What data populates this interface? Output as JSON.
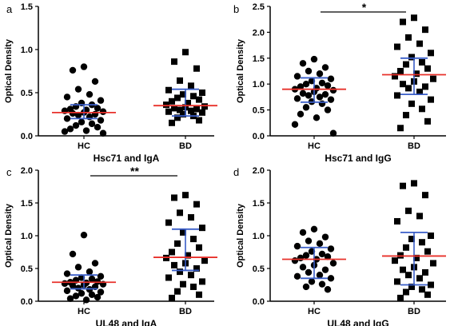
{
  "colors": {
    "mean_line": "#e8302a",
    "sd_line": "#3a5ec8",
    "points": "#000000"
  },
  "chart_data": [
    {
      "type": "scatter",
      "panel": "a",
      "xlabel": "Hsc71 and IgA",
      "ylabel": "Optical Density",
      "categories": [
        "HC",
        "BD"
      ],
      "ylim": [
        0,
        1.5
      ],
      "yticks": [
        "0.0",
        "0.5",
        "1.0",
        "1.5"
      ],
      "significance": "",
      "series": [
        {
          "marker": "circle",
          "mean": 0.27,
          "sd_low": 0.2,
          "sd_high": 0.36,
          "values": [
            0.8,
            0.76,
            0.63,
            0.54,
            0.48,
            0.45,
            0.41,
            0.38,
            0.36,
            0.34,
            0.32,
            0.31,
            0.3,
            0.29,
            0.28,
            0.27,
            0.26,
            0.25,
            0.24,
            0.22,
            0.2,
            0.18,
            0.16,
            0.14,
            0.12,
            0.1,
            0.08,
            0.06,
            0.05,
            0.03
          ]
        },
        {
          "marker": "square",
          "mean": 0.35,
          "sd_low": 0.23,
          "sd_high": 0.54,
          "values": [
            0.97,
            0.86,
            0.78,
            0.64,
            0.58,
            0.53,
            0.5,
            0.48,
            0.46,
            0.44,
            0.42,
            0.4,
            0.38,
            0.36,
            0.34,
            0.33,
            0.32,
            0.31,
            0.3,
            0.29,
            0.28,
            0.27,
            0.25,
            0.23,
            0.21,
            0.18,
            0.15
          ]
        }
      ]
    },
    {
      "type": "scatter",
      "panel": "b",
      "xlabel": "Hsc71 and IgG",
      "ylabel": "Optical Density",
      "categories": [
        "HC",
        "BD"
      ],
      "ylim": [
        0,
        2.5
      ],
      "yticks": [
        "0.0",
        "0.5",
        "1.0",
        "1.5",
        "2.0",
        "2.5"
      ],
      "significance": "*",
      "series": [
        {
          "marker": "circle",
          "mean": 0.9,
          "sd_low": 0.65,
          "sd_high": 1.12,
          "values": [
            1.48,
            1.4,
            1.32,
            1.25,
            1.2,
            1.15,
            1.1,
            1.06,
            1.02,
            1.0,
            0.97,
            0.95,
            0.92,
            0.9,
            0.88,
            0.85,
            0.82,
            0.8,
            0.78,
            0.75,
            0.72,
            0.7,
            0.66,
            0.62,
            0.55,
            0.5,
            0.42,
            0.35,
            0.22,
            0.05
          ]
        },
        {
          "marker": "square",
          "mean": 1.18,
          "sd_low": 0.8,
          "sd_high": 1.5,
          "values": [
            2.28,
            2.2,
            2.05,
            1.9,
            1.78,
            1.72,
            1.6,
            1.52,
            1.42,
            1.38,
            1.3,
            1.25,
            1.2,
            1.15,
            1.1,
            1.05,
            1.0,
            0.95,
            0.92,
            0.85,
            0.78,
            0.7,
            0.62,
            0.52,
            0.4,
            0.28,
            0.15
          ]
        }
      ]
    },
    {
      "type": "scatter",
      "panel": "c",
      "xlabel": "UL48 and IgA",
      "ylabel": "Optical Density",
      "categories": [
        "HC",
        "BD"
      ],
      "ylim": [
        0,
        2.0
      ],
      "yticks": [
        "0.0",
        "0.5",
        "1.0",
        "1.5",
        "2.0"
      ],
      "significance": "**",
      "series": [
        {
          "marker": "circle",
          "mean": 0.29,
          "sd_low": 0.19,
          "sd_high": 0.4,
          "values": [
            1.01,
            0.72,
            0.58,
            0.52,
            0.45,
            0.42,
            0.38,
            0.36,
            0.34,
            0.32,
            0.3,
            0.29,
            0.28,
            0.27,
            0.26,
            0.25,
            0.24,
            0.22,
            0.2,
            0.18,
            0.16,
            0.14,
            0.12,
            0.1,
            0.08,
            0.06,
            0.04,
            0.02
          ]
        },
        {
          "marker": "square",
          "mean": 0.67,
          "sd_low": 0.47,
          "sd_high": 1.1,
          "values": [
            1.62,
            1.58,
            1.48,
            1.35,
            1.28,
            1.2,
            1.12,
            1.05,
            0.95,
            0.88,
            0.82,
            0.75,
            0.7,
            0.66,
            0.62,
            0.58,
            0.55,
            0.5,
            0.45,
            0.4,
            0.36,
            0.3,
            0.26,
            0.22,
            0.15,
            0.1,
            0.05
          ]
        }
      ]
    },
    {
      "type": "scatter",
      "panel": "d",
      "xlabel": "UL48 and IgG",
      "ylabel": "Optical Density",
      "categories": [
        "HC",
        "BD"
      ],
      "ylim": [
        0,
        2.0
      ],
      "yticks": [
        "0.0",
        "0.5",
        "1.0",
        "1.5",
        "2.0"
      ],
      "significance": "",
      "series": [
        {
          "marker": "circle",
          "mean": 0.64,
          "sd_low": 0.35,
          "sd_high": 0.82,
          "values": [
            1.1,
            1.05,
            0.98,
            0.92,
            0.88,
            0.84,
            0.8,
            0.76,
            0.72,
            0.7,
            0.68,
            0.66,
            0.64,
            0.62,
            0.58,
            0.55,
            0.52,
            0.48,
            0.44,
            0.4,
            0.38,
            0.35,
            0.3,
            0.26,
            0.22,
            0.18
          ]
        },
        {
          "marker": "square",
          "mean": 0.69,
          "sd_low": 0.25,
          "sd_high": 1.05,
          "values": [
            1.8,
            1.76,
            1.62,
            1.38,
            1.3,
            1.22,
            1.0,
            0.95,
            0.9,
            0.82,
            0.76,
            0.7,
            0.66,
            0.62,
            0.58,
            0.52,
            0.48,
            0.44,
            0.4,
            0.35,
            0.3,
            0.25,
            0.22,
            0.18,
            0.14,
            0.1,
            0.05
          ]
        }
      ]
    }
  ]
}
